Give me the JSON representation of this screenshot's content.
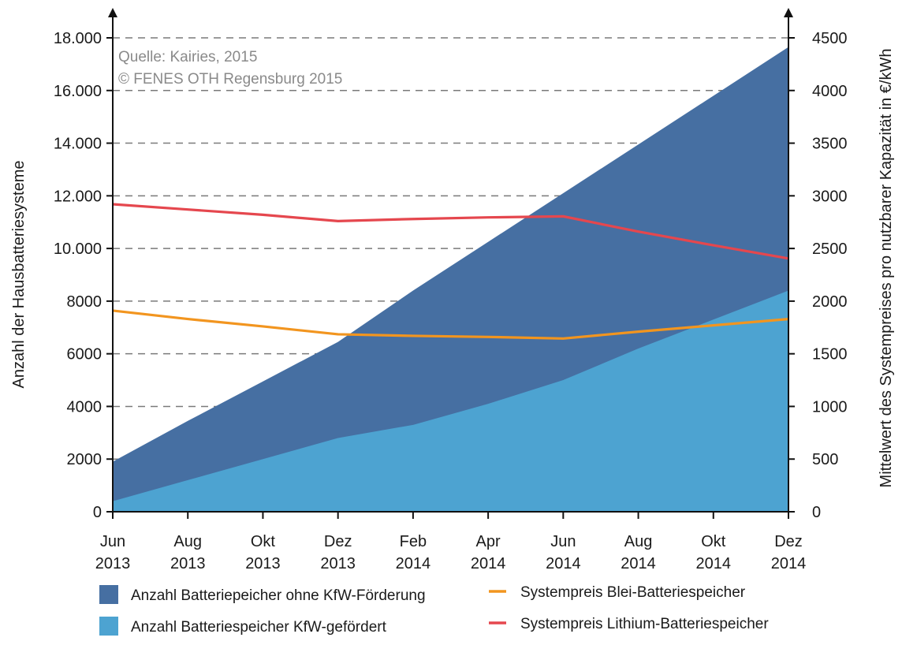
{
  "chart_data": {
    "type": "area",
    "x_categories": [
      [
        "Jun",
        "2013"
      ],
      [
        "Aug",
        "2013"
      ],
      [
        "Okt",
        "2013"
      ],
      [
        "Dez",
        "2013"
      ],
      [
        "Feb",
        "2014"
      ],
      [
        "Apr",
        "2014"
      ],
      [
        "Jun",
        "2014"
      ],
      [
        "Aug",
        "2014"
      ],
      [
        "Okt",
        "2014"
      ],
      [
        "Dez",
        "2014"
      ]
    ],
    "left_axis": {
      "label": "Anzahl der Hausbatteriesysteme",
      "ylim": [
        0,
        18000
      ],
      "ticks": [
        0,
        2000,
        4000,
        6000,
        8000,
        10000,
        12000,
        14000,
        16000,
        18000
      ],
      "tick_labels": [
        "0",
        "2000",
        "4000",
        "6000",
        "8000",
        "10.000",
        "12.000",
        "14.000",
        "16.000",
        "18.000"
      ]
    },
    "right_axis": {
      "label": "Mittelwert des Systempreises pro nutzbarer Kapazität in €/kWh",
      "ylim": [
        0,
        4500
      ],
      "ticks": [
        0,
        500,
        1000,
        1500,
        2000,
        2500,
        3000,
        3500,
        4000,
        4500
      ],
      "tick_labels": [
        "0",
        "500",
        "1000",
        "1500",
        "2000",
        "2500",
        "3000",
        "3500",
        "4000",
        "4500"
      ]
    },
    "grid": "horizontal dashed",
    "annotations": [
      "Quelle: Kairies, 2015",
      "© FENES OTH Regensburg 2015"
    ],
    "series": [
      {
        "name": "Anzahl Batteriepeicher ohne KfW-Förderung",
        "kind": "area",
        "axis": "left",
        "color": "#466fa2",
        "values": [
          1900,
          3450,
          4950,
          6450,
          8400,
          10250,
          12100,
          13950,
          15800,
          17650
        ]
      },
      {
        "name": "Anzahl Batteriespeicher KfW-gefördert",
        "kind": "area",
        "axis": "left",
        "color": "#4da3d1",
        "values": [
          400,
          1200,
          2000,
          2800,
          3300,
          4100,
          5000,
          6200,
          7300,
          8400
        ]
      },
      {
        "name": "Systempreis Blei-Batteriespeicher",
        "kind": "line",
        "axis": "right",
        "color": "#f2951f",
        "values": [
          1910,
          1830,
          1760,
          1685,
          1670,
          1660,
          1645,
          1710,
          1770,
          1830
        ]
      },
      {
        "name": "Systempreis Lithium-Batteriespeicher",
        "kind": "line",
        "axis": "right",
        "color": "#e5474e",
        "values": [
          2920,
          2870,
          2820,
          2760,
          2780,
          2795,
          2805,
          2660,
          2530,
          2405
        ]
      }
    ],
    "legend": {
      "placement": "bottom",
      "items": [
        {
          "label": "Anzahl Batteriepeicher ohne KfW-Förderung",
          "marker": "square",
          "color": "#466fa2"
        },
        {
          "label": "Systempreis Blei-Batteriespeicher",
          "marker": "line",
          "color": "#f2951f"
        },
        {
          "label": "Anzahl Batteriespeicher KfW-gefördert",
          "marker": "square",
          "color": "#4da3d1"
        },
        {
          "label": "Systempreis Lithium-Batteriespeicher",
          "marker": "line",
          "color": "#e5474e"
        }
      ]
    }
  }
}
